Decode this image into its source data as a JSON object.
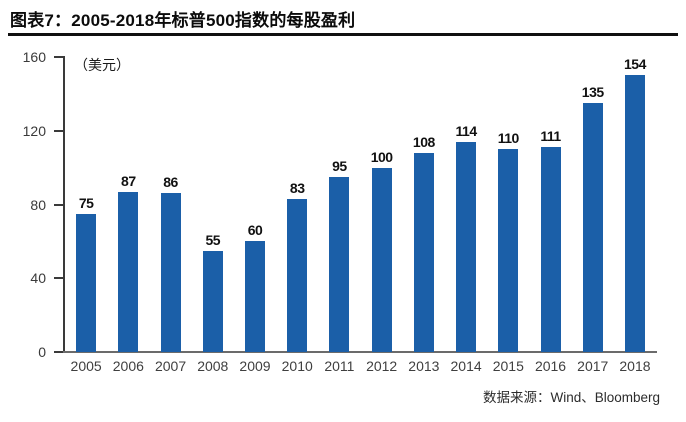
{
  "page": {
    "title": "图表7：2005-2018年标普500指数的每股盈利",
    "source": "数据来源：Wind、Bloomberg"
  },
  "chart_data": {
    "type": "bar",
    "title": "图表7：2005-2018年标普500指数的每股盈利",
    "unit_label": "（美元）",
    "categories": [
      "2005",
      "2006",
      "2007",
      "2008",
      "2009",
      "2010",
      "2011",
      "2012",
      "2013",
      "2014",
      "2015",
      "2016",
      "2017",
      "2018"
    ],
    "values": [
      75,
      87,
      86,
      55,
      60,
      83,
      95,
      100,
      108,
      114,
      110,
      111,
      135,
      154
    ],
    "xlabel": "",
    "ylabel": "美元",
    "ylim": [
      0,
      160
    ],
    "yticks": [
      0,
      40,
      80,
      120,
      160
    ],
    "bar_color": "#1b5fa8",
    "value_label_color": "#111111",
    "axis_color": "#3a3a3a",
    "grid": false,
    "legend": "none",
    "value_labels_shown": true,
    "source": "数据来源：Wind、Bloomberg"
  }
}
